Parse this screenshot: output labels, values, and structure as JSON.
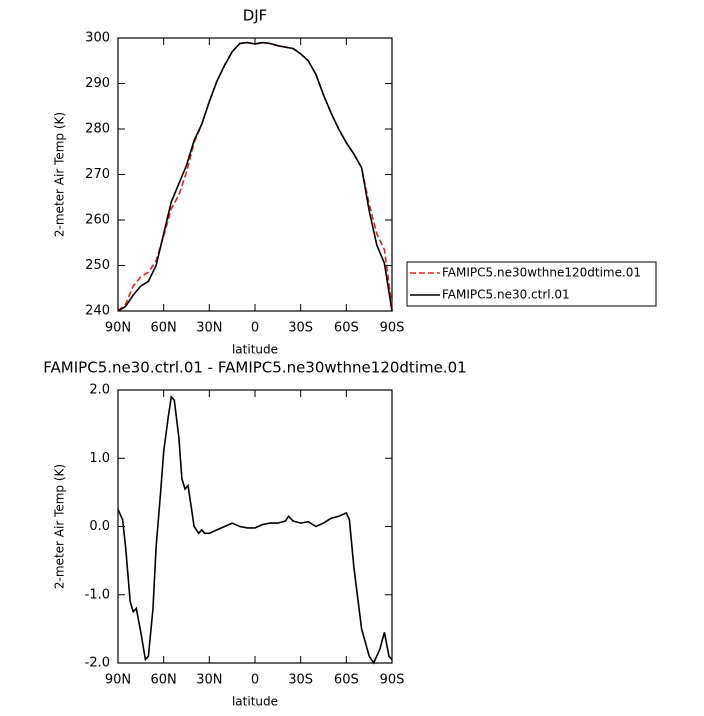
{
  "chart_data": [
    {
      "type": "line",
      "title": "DJF",
      "x_label": "latitude",
      "y_label": "2-meter Air Temp (K)",
      "x": [
        90,
        85,
        80,
        75,
        70,
        65,
        60,
        55,
        50,
        45,
        40,
        35,
        30,
        25,
        20,
        15,
        10,
        5,
        0,
        -5,
        -10,
        -15,
        -20,
        -25,
        -30,
        -35,
        -40,
        -45,
        -50,
        -55,
        -60,
        -65,
        -70,
        -75,
        -80,
        -85,
        -90
      ],
      "series": [
        {
          "name": "FAMIPC5.ne30wthne120dtime.01",
          "color": "#e02020",
          "linestyle": "dashed",
          "values": [
            240,
            241.5,
            245.5,
            247.5,
            248.5,
            251,
            256.5,
            262.5,
            265.5,
            270.5,
            277,
            281,
            286,
            290.5,
            294,
            297,
            298.8,
            299,
            298.7,
            299,
            298.8,
            298.3,
            298,
            297.7,
            296.5,
            295,
            292,
            287.5,
            283.5,
            280,
            277,
            274.5,
            271.5,
            263.5,
            257,
            253.5,
            241
          ]
        },
        {
          "name": "FAMIPC5.ne30.ctrl.01",
          "color": "#000000",
          "linestyle": "solid",
          "values": [
            240,
            241,
            243.5,
            245.5,
            246.5,
            250,
            257,
            264,
            268,
            272,
            277.5,
            281,
            286,
            290.5,
            294,
            297,
            298.8,
            299,
            298.7,
            299,
            298.8,
            298.3,
            298,
            297.7,
            296.5,
            295,
            292,
            287.5,
            283.5,
            280,
            277,
            274.5,
            271.5,
            262,
            254.5,
            250.5,
            240
          ]
        }
      ],
      "xlim": [
        90,
        -90
      ],
      "xticks": [
        {
          "value": 90,
          "label": "90N"
        },
        {
          "value": 60,
          "label": "60N"
        },
        {
          "value": 30,
          "label": "30N"
        },
        0,
        {
          "value": -30,
          "label": "30S"
        },
        {
          "value": -60,
          "label": "60S"
        },
        {
          "value": -90,
          "label": "90S"
        }
      ],
      "ylim": [
        240,
        300
      ],
      "yticks": [
        240,
        250,
        260,
        270,
        280,
        290,
        300
      ],
      "legend": "right"
    },
    {
      "type": "line",
      "title": "FAMIPC5.ne30.ctrl.01 - FAMIPC5.ne30wthne120dtime.01",
      "x_label": "latitude",
      "y_label": "2-meter Air Temp (K)",
      "x": [
        90,
        87,
        85,
        82,
        80,
        78,
        75,
        72,
        70,
        67,
        65,
        62,
        60,
        57,
        55,
        53,
        50,
        48,
        46,
        44,
        42,
        40,
        37,
        35,
        33,
        30,
        25,
        20,
        15,
        10,
        5,
        0,
        -5,
        -10,
        -15,
        -20,
        -22,
        -25,
        -30,
        -35,
        -40,
        -45,
        -50,
        -55,
        -60,
        -62,
        -65,
        -70,
        -75,
        -78,
        -82,
        -85,
        -88,
        -90
      ],
      "values": [
        0.25,
        0.1,
        -0.3,
        -1.1,
        -1.25,
        -1.2,
        -1.55,
        -1.95,
        -1.9,
        -1.2,
        -0.3,
        0.5,
        1.1,
        1.6,
        1.9,
        1.85,
        1.3,
        0.7,
        0.55,
        0.6,
        0.3,
        0.0,
        -0.1,
        -0.05,
        -0.1,
        -0.1,
        -0.05,
        0.0,
        0.05,
        0.0,
        -0.02,
        -0.02,
        0.03,
        0.05,
        0.05,
        0.08,
        0.15,
        0.08,
        0.05,
        0.07,
        0.0,
        0.05,
        0.12,
        0.15,
        0.2,
        0.1,
        -0.6,
        -1.5,
        -1.9,
        -2.0,
        -1.8,
        -1.55,
        -1.9,
        -1.95
      ],
      "color": "#000000",
      "xlim": [
        90,
        -90
      ],
      "xticks": [
        {
          "value": 90,
          "label": "90N"
        },
        {
          "value": 60,
          "label": "60N"
        },
        {
          "value": 30,
          "label": "30N"
        },
        0,
        {
          "value": -30,
          "label": "30S"
        },
        {
          "value": -60,
          "label": "60S"
        },
        {
          "value": -90,
          "label": "90S"
        }
      ],
      "ylim": [
        -2,
        2
      ],
      "yticks": [
        {
          "value": -2,
          "label": "-2.0"
        },
        {
          "value": -1,
          "label": "-1.0"
        },
        {
          "value": 0,
          "label": "0.0"
        },
        {
          "value": 1,
          "label": "1.0"
        },
        {
          "value": 2,
          "label": "2.0"
        }
      ]
    }
  ]
}
